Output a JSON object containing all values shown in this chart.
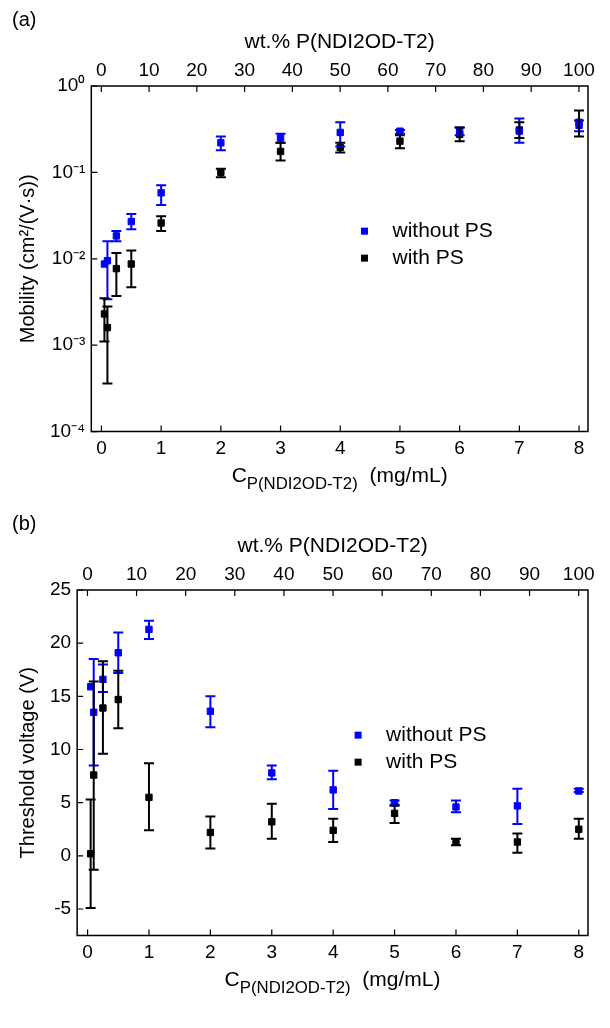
{
  "chart_data": [
    {
      "type": "scatter",
      "title": "(a)",
      "xlabel": "C$_{P(NDI2OD-T2)}$  (mg/mL)",
      "ylabel": "Mobility (cm²/(V·s))",
      "x2label": "wt.% P(NDI2OD-T2)",
      "log": "y",
      "grid": false,
      "legend": "right",
      "marker": "square",
      "x": [
        0.05,
        0.1,
        0.25,
        0.5,
        1,
        2,
        3,
        4,
        5,
        6,
        7,
        8
      ],
      "xlim": [
        -0.17,
        8.15
      ],
      "xticks": [
        0,
        1,
        2,
        3,
        4,
        5,
        6,
        7,
        8
      ],
      "x2lim": [
        -2.1,
        101.9
      ],
      "x2ticks": [
        0,
        10,
        20,
        30,
        40,
        50,
        60,
        70,
        80,
        90,
        100
      ],
      "ylim": [
        0.0001,
        1
      ],
      "yticks": [
        {
          "value": 0.0001,
          "label": "10⁻⁴"
        },
        {
          "value": 0.001,
          "label": "10⁻³"
        },
        {
          "value": 0.01,
          "label": "10⁻²"
        },
        {
          "value": 0.1,
          "label": "10⁻¹"
        },
        {
          "value": 1,
          "label": "10⁰"
        }
      ],
      "series": [
        {
          "name": "without PS",
          "color": "#0000ff",
          "values": [
            0.0087,
            0.0095,
            0.0184,
            0.027,
            0.058,
            0.22,
            0.25,
            0.29,
            0.3,
            0.3,
            0.3,
            0.35
          ],
          "errors": [
            null,
            [
              0.0034,
              0.016
            ],
            [
              0.016,
              0.021
            ],
            [
              0.022,
              0.033
            ],
            [
              0.042,
              0.071
            ],
            [
              0.18,
              0.26
            ],
            [
              0.22,
              0.28
            ],
            [
              0.2,
              0.38
            ],
            [
              0.28,
              0.31
            ],
            [
              0.27,
              0.33
            ],
            [
              0.22,
              0.42
            ],
            [
              0.3,
              0.4
            ]
          ]
        },
        {
          "name": "with PS",
          "color": "#000000",
          "values": [
            0.0023,
            0.0016,
            0.0077,
            0.0087,
            0.026,
            0.1,
            0.175,
            0.195,
            0.23,
            0.275,
            0.31,
            0.38
          ],
          "errors": [
            [
              0.0011,
              0.0035
            ],
            [
              0.00036,
              0.0028
            ],
            [
              0.0037,
              0.0117
            ],
            [
              0.0047,
              0.0125
            ],
            [
              0.021,
              0.031
            ],
            [
              0.088,
              0.11
            ],
            [
              0.137,
              0.22
            ],
            [
              0.17,
              0.22
            ],
            [
              0.19,
              0.27
            ],
            [
              0.23,
              0.33
            ],
            [
              0.25,
              0.38
            ],
            [
              0.26,
              0.52
            ]
          ]
        }
      ]
    },
    {
      "type": "scatter",
      "title": "(b)",
      "xlabel": "C$_{P(NDI2OD-T2)}$  (mg/mL)",
      "ylabel": "Threshold voltage (V)",
      "x2label": "wt.% P(NDI2OD-T2)",
      "grid": false,
      "legend": "right",
      "marker": "square",
      "x": [
        0.05,
        0.1,
        0.25,
        0.5,
        1,
        2,
        3,
        4,
        5,
        6,
        7,
        8
      ],
      "xlim": [
        -0.17,
        8.15
      ],
      "xticks": [
        0,
        1,
        2,
        3,
        4,
        5,
        6,
        7,
        8
      ],
      "x2lim": [
        -2.1,
        101.9
      ],
      "x2ticks": [
        0,
        10,
        20,
        30,
        40,
        50,
        60,
        70,
        80,
        90,
        100
      ],
      "ylim": [
        -7.5,
        25
      ],
      "yticks": [
        -5,
        0,
        5,
        10,
        15,
        20,
        25
      ],
      "series": [
        {
          "name": "without PS",
          "color": "#0000ff",
          "values": [
            15.9,
            13.5,
            16.6,
            19.1,
            21.3,
            13.6,
            7.8,
            6.2,
            5.0,
            4.6,
            4.7,
            6.1
          ],
          "errors": [
            null,
            [
              8.5,
              18.5
            ],
            [
              15.4,
              18.0
            ],
            [
              17.2,
              21.0
            ],
            [
              20.4,
              22.1
            ],
            [
              12.1,
              15.0
            ],
            [
              7.2,
              8.5
            ],
            [
              4.4,
              8.0
            ],
            [
              4.8,
              5.2
            ],
            [
              4.1,
              5.2
            ],
            [
              3.0,
              6.3
            ],
            [
              6.0,
              6.3
            ]
          ]
        },
        {
          "name": "with PS",
          "color": "#000000",
          "values": [
            0.2,
            7.6,
            13.9,
            14.7,
            5.5,
            2.2,
            3.2,
            2.4,
            4.0,
            1.3,
            1.3,
            2.5
          ],
          "errors": [
            [
              -4.9,
              5.3
            ],
            [
              -1.3,
              16.4
            ],
            [
              9.6,
              18.3
            ],
            [
              12.0,
              17.4
            ],
            [
              2.4,
              8.7
            ],
            [
              0.7,
              3.7
            ],
            [
              1.6,
              4.9
            ],
            [
              1.3,
              3.5
            ],
            [
              3.1,
              4.7
            ],
            [
              1.0,
              1.6
            ],
            [
              0.3,
              2.1
            ],
            [
              1.6,
              3.5
            ]
          ]
        }
      ]
    }
  ]
}
